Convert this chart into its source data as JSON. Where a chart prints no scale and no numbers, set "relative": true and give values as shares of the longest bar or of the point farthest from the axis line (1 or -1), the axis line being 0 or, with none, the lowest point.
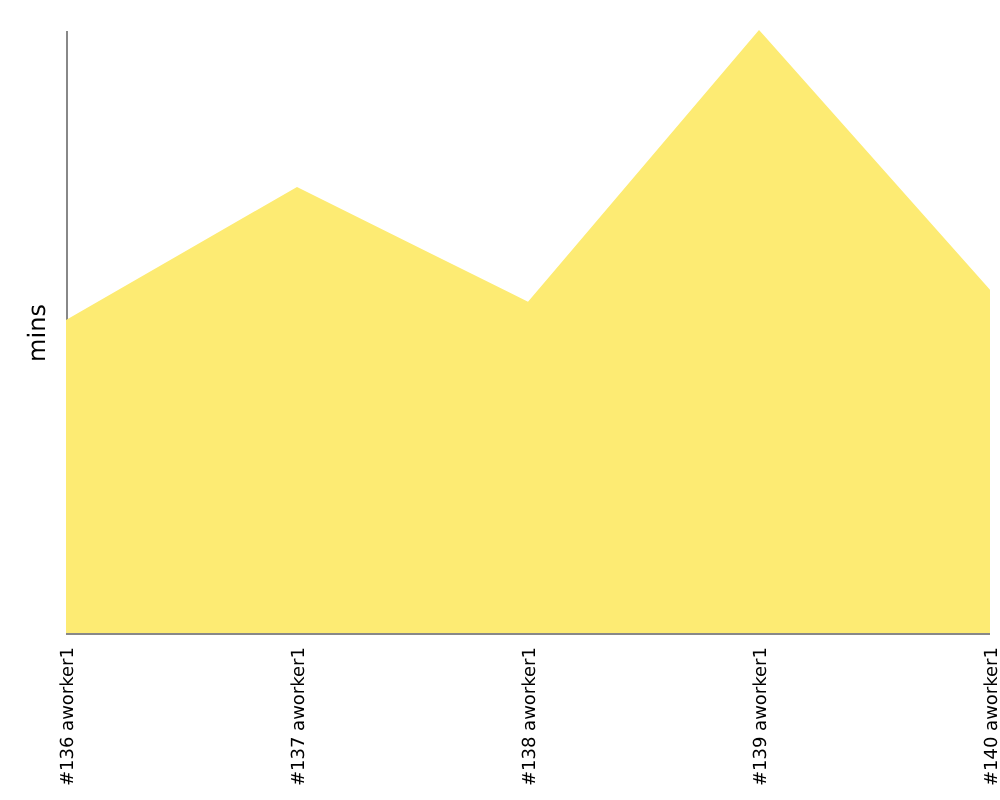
{
  "chart_data": {
    "type": "area",
    "ylabel": "mins",
    "relative": true,
    "categories": [
      "#136 aworker1",
      "#137 aworker1",
      "#138 aworker1",
      "#139 aworker1",
      "#140 aworker1"
    ],
    "series": [
      {
        "color": "#fdeb73",
        "values": [
          0.52,
          0.74,
          0.55,
          1,
          0.57
        ]
      }
    ]
  }
}
